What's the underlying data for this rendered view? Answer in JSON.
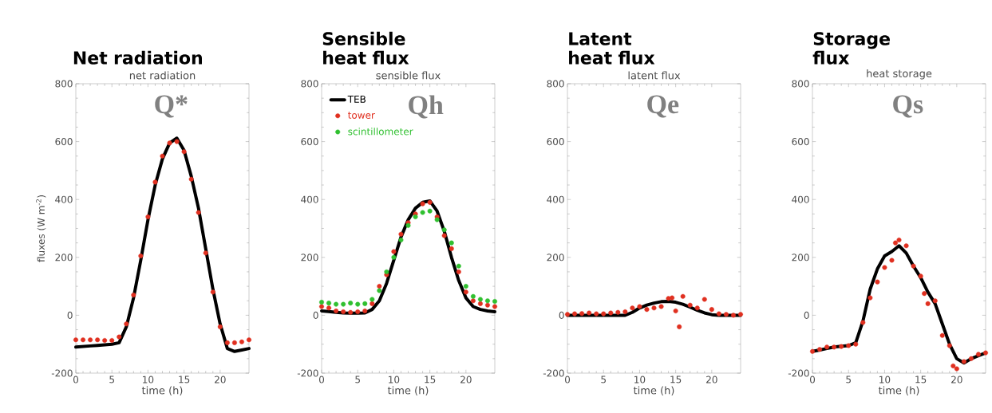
{
  "chart_data": [
    {
      "type": "line",
      "title": "Net radiation",
      "subtitle": "net radiation",
      "xlabel": "time (h)",
      "ylabel": "fluxes (W m$^{-2}$)",
      "annotations": [
        "Q*"
      ],
      "xlim": [
        0,
        24
      ],
      "ylim": [
        -200,
        800
      ],
      "xticks": [
        0,
        5,
        10,
        15,
        20
      ],
      "yticks": [
        -200,
        0,
        200,
        400,
        600,
        800
      ],
      "line_style": "solid",
      "series": [
        {
          "type": "line",
          "color": "#000000",
          "x": [
            0,
            1,
            2,
            3,
            4,
            5,
            6,
            7,
            8,
            9,
            10,
            11,
            12,
            13,
            14,
            15,
            16,
            17,
            18,
            19,
            20,
            21,
            22,
            23,
            24
          ],
          "values": [
            -110,
            -108,
            -106,
            -104,
            -102,
            -100,
            -95,
            -40,
            60,
            190,
            330,
            450,
            540,
            595,
            612,
            570,
            480,
            370,
            230,
            90,
            -30,
            -115,
            -125,
            -120,
            -115
          ]
        },
        {
          "type": "scatter",
          "marker": "circle",
          "color": "#e03020",
          "x": [
            0,
            1,
            2,
            3,
            4,
            5,
            6,
            7,
            8,
            9,
            10,
            11,
            12,
            13,
            14,
            15,
            16,
            17,
            18,
            19,
            20,
            21,
            22,
            23,
            24
          ],
          "values": [
            -85,
            -85,
            -85,
            -85,
            -87,
            -87,
            -75,
            -30,
            70,
            205,
            340,
            460,
            550,
            595,
            600,
            565,
            470,
            355,
            215,
            80,
            -40,
            -95,
            -95,
            -92,
            -85
          ]
        }
      ]
    },
    {
      "type": "line",
      "title": "Sensible heat flux",
      "subtitle": "sensible flux",
      "xlabel": "time (h)",
      "annotations": [
        "Qh"
      ],
      "xlim": [
        0,
        24
      ],
      "ylim": [
        -200,
        800
      ],
      "xticks": [
        0,
        5,
        10,
        15,
        20
      ],
      "yticks": [
        -200,
        0,
        200,
        400,
        600,
        800
      ],
      "legend": "top left",
      "line_style": "solid",
      "series": [
        {
          "type": "line",
          "name": "TEB",
          "color": "#000000",
          "x": [
            0,
            1,
            2,
            3,
            4,
            5,
            6,
            7,
            8,
            9,
            10,
            11,
            12,
            13,
            14,
            15,
            16,
            17,
            18,
            19,
            20,
            21,
            22,
            23,
            24
          ],
          "values": [
            15,
            13,
            10,
            8,
            7,
            7,
            8,
            20,
            50,
            110,
            190,
            270,
            330,
            370,
            390,
            395,
            360,
            290,
            200,
            120,
            60,
            30,
            20,
            15,
            12
          ]
        },
        {
          "type": "scatter",
          "name": "tower",
          "marker": "circle",
          "color": "#e03020",
          "x": [
            0,
            1,
            2,
            3,
            4,
            5,
            6,
            7,
            8,
            9,
            10,
            11,
            12,
            13,
            14,
            15,
            16,
            17,
            18,
            19,
            20,
            21,
            22,
            23,
            24
          ],
          "values": [
            30,
            25,
            15,
            12,
            10,
            12,
            15,
            40,
            100,
            140,
            220,
            280,
            320,
            350,
            385,
            390,
            340,
            275,
            230,
            150,
            80,
            50,
            40,
            35,
            30
          ]
        },
        {
          "type": "scatter",
          "name": "scintillometer",
          "marker": "circle",
          "color": "#30c030",
          "x": [
            0,
            1,
            2,
            3,
            4,
            5,
            6,
            7,
            8,
            9,
            10,
            11,
            12,
            13,
            14,
            15,
            16,
            17,
            18,
            19,
            20,
            21,
            22,
            23,
            24
          ],
          "values": [
            45,
            42,
            38,
            38,
            42,
            38,
            40,
            55,
            85,
            150,
            200,
            260,
            310,
            340,
            355,
            360,
            330,
            295,
            250,
            170,
            100,
            65,
            55,
            50,
            48
          ]
        }
      ]
    },
    {
      "type": "line",
      "title": "Latent heat flux",
      "subtitle": "latent flux",
      "xlabel": "time (h)",
      "annotations": [
        "Qe"
      ],
      "xlim": [
        0,
        24
      ],
      "ylim": [
        -200,
        800
      ],
      "xticks": [
        0,
        5,
        10,
        15,
        20
      ],
      "yticks": [
        -200,
        0,
        200,
        400,
        600,
        800
      ],
      "line_style": "solid",
      "series": [
        {
          "type": "line",
          "color": "#000000",
          "x": [
            0,
            1,
            2,
            3,
            4,
            5,
            6,
            7,
            8,
            9,
            10,
            11,
            12,
            13,
            14,
            15,
            16,
            17,
            18,
            19,
            20,
            21,
            22,
            23,
            24
          ],
          "values": [
            0,
            0,
            0,
            0,
            0,
            0,
            0,
            0,
            0,
            10,
            25,
            35,
            42,
            47,
            48,
            45,
            38,
            28,
            17,
            8,
            2,
            0,
            0,
            0,
            0
          ]
        },
        {
          "type": "scatter",
          "marker": "circle",
          "color": "#e03020",
          "x": [
            0,
            1,
            2,
            3,
            4,
            5,
            6,
            7,
            8,
            9,
            10,
            11,
            12,
            13,
            14,
            14.5,
            15,
            15.5,
            16,
            17,
            18,
            19,
            20,
            21,
            22,
            23,
            24
          ],
          "values": [
            3,
            5,
            6,
            8,
            5,
            5,
            8,
            10,
            12,
            25,
            30,
            20,
            25,
            30,
            58,
            60,
            15,
            -40,
            65,
            35,
            25,
            55,
            20,
            5,
            3,
            0,
            3
          ]
        }
      ]
    },
    {
      "type": "line",
      "title": "Storage flux",
      "subtitle": "heat storage",
      "xlabel": "time (h)",
      "annotations": [
        "Qs"
      ],
      "xlim": [
        0,
        24
      ],
      "ylim": [
        -200,
        800
      ],
      "xticks": [
        0,
        5,
        10,
        15,
        20
      ],
      "yticks": [
        -200,
        0,
        200,
        400,
        600,
        800
      ],
      "line_style": "solid",
      "series": [
        {
          "type": "line",
          "color": "#000000",
          "x": [
            0,
            1,
            2,
            3,
            4,
            5,
            6,
            7,
            8,
            9,
            10,
            11,
            12,
            13,
            14,
            15,
            16,
            17,
            18,
            19,
            20,
            21,
            22,
            23,
            24
          ],
          "values": [
            -125,
            -120,
            -115,
            -110,
            -107,
            -105,
            -95,
            -20,
            90,
            160,
            205,
            220,
            240,
            215,
            170,
            130,
            80,
            40,
            -30,
            -100,
            -150,
            -165,
            -150,
            -140,
            -130
          ]
        },
        {
          "type": "scatter",
          "marker": "circle",
          "color": "#e03020",
          "x": [
            0,
            1,
            2,
            3,
            4,
            5,
            6,
            7,
            8,
            9,
            10,
            11,
            11.5,
            12,
            13,
            14,
            15,
            15.5,
            16,
            17,
            18,
            19,
            19.5,
            20,
            21,
            22,
            23,
            24
          ],
          "values": [
            -125,
            -118,
            -110,
            -110,
            -108,
            -105,
            -100,
            -25,
            60,
            115,
            165,
            190,
            250,
            260,
            240,
            170,
            135,
            75,
            40,
            50,
            -70,
            -105,
            -175,
            -185,
            -160,
            -150,
            -135,
            -130
          ]
        }
      ]
    }
  ]
}
